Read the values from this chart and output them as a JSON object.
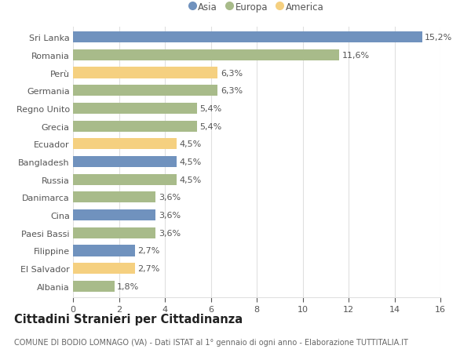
{
  "countries": [
    "Sri Lanka",
    "Romania",
    "Perù",
    "Germania",
    "Regno Unito",
    "Grecia",
    "Ecuador",
    "Bangladesh",
    "Russia",
    "Danimarca",
    "Cina",
    "Paesi Bassi",
    "Filippine",
    "El Salvador",
    "Albania"
  ],
  "values": [
    15.2,
    11.6,
    6.3,
    6.3,
    5.4,
    5.4,
    4.5,
    4.5,
    4.5,
    3.6,
    3.6,
    3.6,
    2.7,
    2.7,
    1.8
  ],
  "continents": [
    "Asia",
    "Europa",
    "America",
    "Europa",
    "Europa",
    "Europa",
    "America",
    "Asia",
    "Europa",
    "Europa",
    "Asia",
    "Europa",
    "Asia",
    "America",
    "Europa"
  ],
  "colors": {
    "Asia": "#7092be",
    "Europa": "#a8bb8a",
    "America": "#f5d080"
  },
  "xlim": [
    0,
    16
  ],
  "xticks": [
    0,
    2,
    4,
    6,
    8,
    10,
    12,
    14,
    16
  ],
  "title": "Cittadini Stranieri per Cittadinanza",
  "subtitle": "COMUNE DI BODIO LOMNAGO (VA) - Dati ISTAT al 1° gennaio di ogni anno - Elaborazione TUTTITALIA.IT",
  "background_color": "#ffffff",
  "grid_color": "#e0e0e0",
  "bar_height": 0.62,
  "label_fontsize": 8.0,
  "value_label_fontsize": 8.0,
  "title_fontsize": 10.5,
  "subtitle_fontsize": 7.0,
  "legend_fontsize": 8.5
}
